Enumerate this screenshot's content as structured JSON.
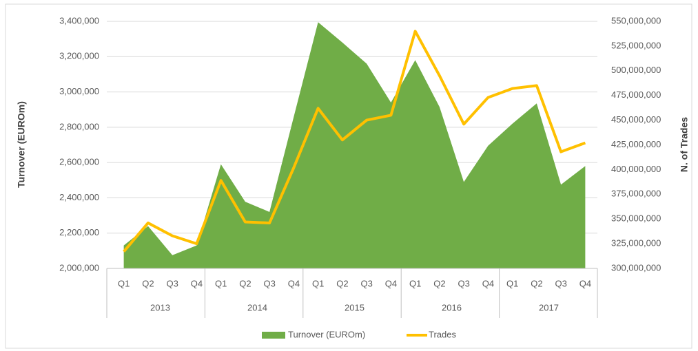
{
  "chart_data": {
    "type": "area-line",
    "categories": [
      "Q1",
      "Q2",
      "Q3",
      "Q4",
      "Q1",
      "Q2",
      "Q3",
      "Q4",
      "Q1",
      "Q2",
      "Q3",
      "Q4",
      "Q1",
      "Q2",
      "Q3",
      "Q4",
      "Q1",
      "Q2",
      "Q3",
      "Q4"
    ],
    "category_groups": [
      "2013",
      "2014",
      "2015",
      "2016",
      "2017"
    ],
    "y_label": "Turnover (EUROm)",
    "y2_label": "N. of Trades",
    "series": [
      {
        "name": "Turnover (EUROm)",
        "type": "area",
        "color": "#70ad47",
        "values": [
          2130000,
          2240000,
          2075000,
          2130000,
          2590000,
          2378000,
          2320000,
          2860000,
          3395000,
          3280000,
          3160000,
          2940000,
          3180000,
          2915000,
          2490000,
          2695000,
          2820000,
          2935000,
          2475000,
          2580000
        ]
      },
      {
        "name": "Trades",
        "type": "line",
        "color": "#ffc000",
        "axis": "y2",
        "values": [
          317000000,
          346000000,
          333000000,
          325000000,
          389000000,
          347000000,
          346000000,
          402000000,
          462000000,
          430000000,
          450000000,
          455000000,
          540000000,
          495000000,
          446000000,
          473000000,
          482000000,
          485000000,
          418000000,
          427000000
        ]
      }
    ],
    "ylim": [
      2000000,
      3400000
    ],
    "yticks": [
      {
        "value": 2000000,
        "label": "2,000,000"
      },
      {
        "value": 2200000,
        "label": "2,200,000"
      },
      {
        "value": 2400000,
        "label": "2,400,000"
      },
      {
        "value": 2600000,
        "label": "2,600,000"
      },
      {
        "value": 2800000,
        "label": "2,800,000"
      },
      {
        "value": 3000000,
        "label": "3,000,000"
      },
      {
        "value": 3200000,
        "label": "3,200,000"
      },
      {
        "value": 3400000,
        "label": "3,400,000"
      }
    ],
    "y2lim": [
      300000000,
      550000000
    ],
    "y2ticks": [
      {
        "value": 300000000,
        "label": "300,000,000"
      },
      {
        "value": 325000000,
        "label": "325,000,000"
      },
      {
        "value": 350000000,
        "label": "350,000,000"
      },
      {
        "value": 375000000,
        "label": "375,000,000"
      },
      {
        "value": 400000000,
        "label": "400,000,000"
      },
      {
        "value": 425000000,
        "label": "425,000,000"
      },
      {
        "value": 450000000,
        "label": "450,000,000"
      },
      {
        "value": 475000000,
        "label": "475,000,000"
      },
      {
        "value": 500000000,
        "label": "500,000,000"
      },
      {
        "value": 525000000,
        "label": "525,000,000"
      },
      {
        "value": 550000000,
        "label": "550,000,000"
      }
    ],
    "grid": true,
    "legend": "bottom"
  }
}
